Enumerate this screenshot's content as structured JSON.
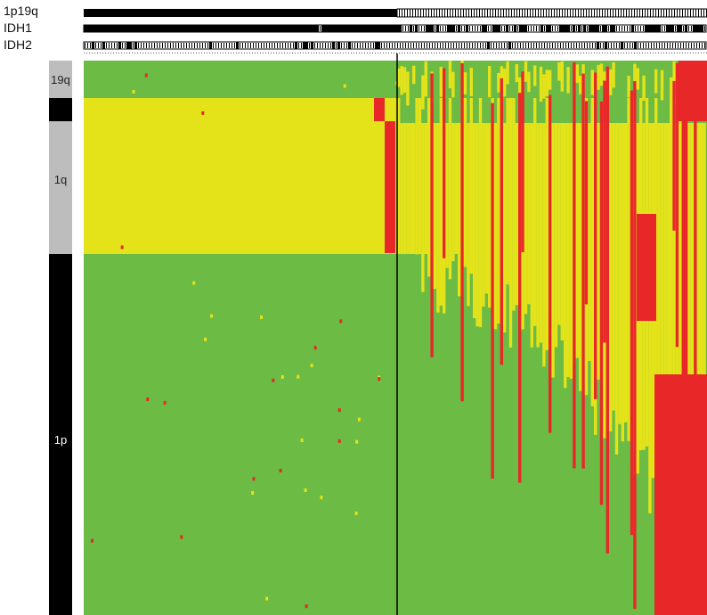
{
  "tracks": {
    "t1": "1p19q",
    "t2": "IDH1",
    "t3": "IDH2"
  },
  "chromosome_bands": {
    "b19q": "19q",
    "b1q": "1q",
    "b1p": "1p"
  },
  "colors": {
    "normal": "#6bbb45",
    "gain": "#e4e31a",
    "loss": "#e82828",
    "band_gray": "#bdbdbd",
    "band_black": "#000000"
  },
  "chart_data": {
    "type": "heatmap",
    "title": "",
    "xlabel": "",
    "ylabel": "",
    "row_groups": [
      "19q",
      "1q",
      "1p"
    ],
    "annotation_tracks": [
      "1p19q",
      "IDH1",
      "IDH2"
    ],
    "sample_groups": {
      "left_block_fraction": 0.5,
      "right_block_fraction": 0.5
    },
    "states": [
      "normal",
      "gain",
      "loss"
    ],
    "grid": false
  }
}
